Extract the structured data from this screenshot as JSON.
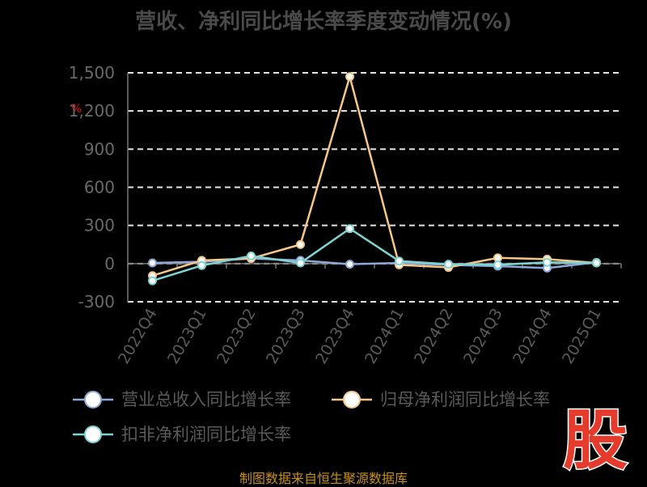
{
  "title": "营收、净利同比增长率季度变动情况(%)",
  "source": "制图数据来自恒生聚源数据库",
  "logo_char": "股",
  "chart_data": {
    "type": "line",
    "y_unit": "%",
    "categories": [
      "2022Q4",
      "2023Q1",
      "2023Q2",
      "2023Q3",
      "2023Q4",
      "2024Q1",
      "2024Q2",
      "2024Q3",
      "2024Q4",
      "2025Q1"
    ],
    "ylim": [
      -300,
      1500
    ],
    "yticks": [
      -300,
      0,
      300,
      600,
      900,
      1200,
      1500
    ],
    "ytick_labels": [
      "-300",
      "0",
      "300",
      "600",
      "900",
      "1,200",
      "1,500"
    ],
    "grid": true,
    "legend_position": "bottom",
    "series": [
      {
        "name": "营业总收入同比增长率",
        "color": "#8ea8d8",
        "values": [
          5,
          15,
          40,
          25,
          -5,
          5,
          -10,
          -20,
          -35,
          10
        ]
      },
      {
        "name": "归母净利润同比增长率",
        "color": "#f7c78a",
        "values": [
          -95,
          25,
          40,
          150,
          1470,
          -10,
          -30,
          45,
          35,
          5
        ]
      },
      {
        "name": "扣非净利润同比增长率",
        "color": "#7fd3d3",
        "values": [
          -135,
          -15,
          60,
          5,
          275,
          20,
          -5,
          -10,
          10,
          5
        ]
      }
    ]
  },
  "colors": {
    "grid": "#e6e6e6",
    "axis": "#777777",
    "logo": "#e53b2c"
  }
}
